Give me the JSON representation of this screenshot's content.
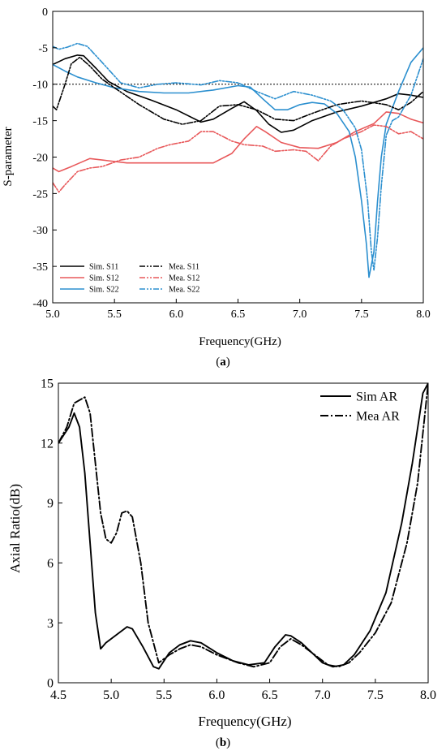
{
  "chart_data": [
    {
      "type": "line",
      "caption": "(a)",
      "caption_letter": "a",
      "xlabel": "Frequency(GHz)",
      "ylabel": "S-parameter",
      "xlim": [
        5.0,
        8.0
      ],
      "ylim": [
        -40,
        0
      ],
      "x_ticks": [
        5.0,
        5.5,
        6.0,
        6.5,
        7.0,
        7.5,
        8.0
      ],
      "y_ticks": [
        0,
        -5,
        -10,
        -15,
        -20,
        -25,
        -30,
        -35,
        -40
      ],
      "grid": false,
      "legend_position": "bottom-left",
      "reference_line": {
        "y": -10,
        "style": "dotted"
      },
      "series": [
        {
          "name": "Sim. S11",
          "color": "#000000",
          "dash": "solid",
          "points": [
            [
              5.0,
              -7.3
            ],
            [
              5.1,
              -6.5
            ],
            [
              5.2,
              -6.0
            ],
            [
              5.25,
              -6.1
            ],
            [
              5.35,
              -7.8
            ],
            [
              5.45,
              -9.6
            ],
            [
              5.6,
              -11.0
            ],
            [
              5.8,
              -12.2
            ],
            [
              6.0,
              -13.5
            ],
            [
              6.2,
              -15.2
            ],
            [
              6.3,
              -14.8
            ],
            [
              6.45,
              -13.3
            ],
            [
              6.55,
              -12.4
            ],
            [
              6.65,
              -13.6
            ],
            [
              6.75,
              -15.5
            ],
            [
              6.85,
              -16.6
            ],
            [
              6.95,
              -16.3
            ],
            [
              7.1,
              -15.0
            ],
            [
              7.3,
              -13.8
            ],
            [
              7.5,
              -13.0
            ],
            [
              7.7,
              -12.0
            ],
            [
              7.8,
              -11.3
            ],
            [
              7.9,
              -11.5
            ],
            [
              8.0,
              -11.8
            ]
          ]
        },
        {
          "name": "Sim. S12",
          "color": "#e8585a",
          "dash": "solid",
          "points": [
            [
              5.0,
              -21.5
            ],
            [
              5.05,
              -22.0
            ],
            [
              5.15,
              -21.3
            ],
            [
              5.3,
              -20.2
            ],
            [
              5.45,
              -20.5
            ],
            [
              5.6,
              -20.8
            ],
            [
              6.0,
              -20.8
            ],
            [
              6.3,
              -20.8
            ],
            [
              6.45,
              -19.5
            ],
            [
              6.55,
              -17.5
            ],
            [
              6.65,
              -15.8
            ],
            [
              6.72,
              -16.5
            ],
            [
              6.85,
              -18.0
            ],
            [
              7.0,
              -18.7
            ],
            [
              7.15,
              -18.8
            ],
            [
              7.3,
              -18.0
            ],
            [
              7.45,
              -16.5
            ],
            [
              7.6,
              -15.4
            ],
            [
              7.7,
              -13.8
            ],
            [
              7.8,
              -14.0
            ],
            [
              7.9,
              -14.8
            ],
            [
              8.0,
              -15.3
            ]
          ]
        },
        {
          "name": "Sim. S22",
          "color": "#2b8fcf",
          "dash": "solid",
          "points": [
            [
              5.0,
              -7.3
            ],
            [
              5.1,
              -8.2
            ],
            [
              5.2,
              -9.0
            ],
            [
              5.35,
              -9.8
            ],
            [
              5.5,
              -10.5
            ],
            [
              5.7,
              -11.0
            ],
            [
              5.9,
              -11.2
            ],
            [
              6.1,
              -11.2
            ],
            [
              6.3,
              -10.8
            ],
            [
              6.5,
              -10.2
            ],
            [
              6.6,
              -10.4
            ],
            [
              6.7,
              -12.0
            ],
            [
              6.8,
              -13.5
            ],
            [
              6.9,
              -13.5
            ],
            [
              7.0,
              -12.8
            ],
            [
              7.1,
              -12.5
            ],
            [
              7.2,
              -12.7
            ],
            [
              7.3,
              -14.0
            ],
            [
              7.4,
              -16.5
            ],
            [
              7.45,
              -20.0
            ],
            [
              7.5,
              -26.0
            ],
            [
              7.54,
              -32.0
            ],
            [
              7.56,
              -36.5
            ],
            [
              7.6,
              -33.0
            ],
            [
              7.63,
              -26.0
            ],
            [
              7.66,
              -20.0
            ],
            [
              7.7,
              -15.5
            ],
            [
              7.8,
              -11.0
            ],
            [
              7.9,
              -7.0
            ],
            [
              8.0,
              -5.0
            ]
          ]
        },
        {
          "name": "Mea. S11",
          "color": "#000000",
          "dash": "dashdotdot",
          "points": [
            [
              5.0,
              -13.0
            ],
            [
              5.03,
              -13.5
            ],
            [
              5.1,
              -10.0
            ],
            [
              5.15,
              -7.2
            ],
            [
              5.22,
              -6.3
            ],
            [
              5.3,
              -7.5
            ],
            [
              5.4,
              -9.3
            ],
            [
              5.5,
              -10.5
            ],
            [
              5.7,
              -12.8
            ],
            [
              5.9,
              -14.8
            ],
            [
              6.05,
              -15.5
            ],
            [
              6.2,
              -15.0
            ],
            [
              6.35,
              -13.0
            ],
            [
              6.5,
              -12.8
            ],
            [
              6.65,
              -13.5
            ],
            [
              6.8,
              -14.8
            ],
            [
              6.95,
              -15.0
            ],
            [
              7.1,
              -14.0
            ],
            [
              7.3,
              -12.8
            ],
            [
              7.5,
              -12.3
            ],
            [
              7.7,
              -12.8
            ],
            [
              7.8,
              -13.5
            ],
            [
              7.9,
              -12.5
            ],
            [
              8.0,
              -11.0
            ]
          ]
        },
        {
          "name": "Mea. S12",
          "color": "#e8585a",
          "dash": "dashdotdot",
          "points": [
            [
              5.0,
              -23.5
            ],
            [
              5.05,
              -24.8
            ],
            [
              5.1,
              -23.8
            ],
            [
              5.2,
              -22.0
            ],
            [
              5.3,
              -21.5
            ],
            [
              5.4,
              -21.3
            ],
            [
              5.55,
              -20.4
            ],
            [
              5.7,
              -20.0
            ],
            [
              5.85,
              -18.8
            ],
            [
              5.95,
              -18.3
            ],
            [
              6.1,
              -17.8
            ],
            [
              6.2,
              -16.5
            ],
            [
              6.3,
              -16.5
            ],
            [
              6.45,
              -17.8
            ],
            [
              6.55,
              -18.3
            ],
            [
              6.7,
              -18.5
            ],
            [
              6.8,
              -19.2
            ],
            [
              6.95,
              -19.0
            ],
            [
              7.05,
              -19.2
            ],
            [
              7.15,
              -20.5
            ],
            [
              7.25,
              -18.5
            ],
            [
              7.35,
              -17.5
            ],
            [
              7.5,
              -16.5
            ],
            [
              7.6,
              -15.6
            ],
            [
              7.7,
              -15.8
            ],
            [
              7.8,
              -16.8
            ],
            [
              7.9,
              -16.5
            ],
            [
              8.0,
              -17.5
            ]
          ]
        },
        {
          "name": "Mea. S22",
          "color": "#2b8fcf",
          "dash": "dashdotdot",
          "points": [
            [
              5.0,
              -4.8
            ],
            [
              5.05,
              -5.2
            ],
            [
              5.12,
              -4.9
            ],
            [
              5.2,
              -4.4
            ],
            [
              5.28,
              -4.8
            ],
            [
              5.4,
              -7.0
            ],
            [
              5.55,
              -9.8
            ],
            [
              5.7,
              -10.5
            ],
            [
              5.85,
              -10.0
            ],
            [
              6.0,
              -9.8
            ],
            [
              6.2,
              -10.1
            ],
            [
              6.35,
              -9.5
            ],
            [
              6.5,
              -9.8
            ],
            [
              6.65,
              -11.0
            ],
            [
              6.8,
              -12.0
            ],
            [
              6.95,
              -11.0
            ],
            [
              7.1,
              -11.5
            ],
            [
              7.25,
              -12.3
            ],
            [
              7.35,
              -13.5
            ],
            [
              7.45,
              -16.0
            ],
            [
              7.5,
              -19.0
            ],
            [
              7.55,
              -26.0
            ],
            [
              7.58,
              -33.0
            ],
            [
              7.6,
              -35.5
            ],
            [
              7.63,
              -31.0
            ],
            [
              7.66,
              -24.0
            ],
            [
              7.7,
              -17.0
            ],
            [
              7.75,
              -15.0
            ],
            [
              7.8,
              -14.5
            ],
            [
              7.9,
              -11.5
            ],
            [
              8.0,
              -6.5
            ]
          ]
        }
      ]
    },
    {
      "type": "line",
      "caption": "(b)",
      "caption_letter": "b",
      "xlabel": "Frequency(GHz)",
      "ylabel": "Axial Ratio(dB)",
      "xlim": [
        4.5,
        8.0
      ],
      "ylim": [
        0,
        15
      ],
      "x_ticks": [
        4.5,
        5.0,
        5.5,
        6.0,
        6.5,
        7.0,
        7.5,
        8.0
      ],
      "y_ticks": [
        0,
        3,
        6,
        9,
        12,
        15
      ],
      "grid": false,
      "legend_position": "top-right",
      "series": [
        {
          "name": "Sim AR",
          "color": "#000000",
          "dash": "solid",
          "points": [
            [
              4.5,
              12.0
            ],
            [
              4.6,
              12.8
            ],
            [
              4.65,
              13.5
            ],
            [
              4.7,
              12.8
            ],
            [
              4.75,
              10.5
            ],
            [
              4.8,
              7.0
            ],
            [
              4.85,
              3.5
            ],
            [
              4.9,
              1.7
            ],
            [
              4.95,
              2.0
            ],
            [
              5.0,
              2.2
            ],
            [
              5.1,
              2.6
            ],
            [
              5.15,
              2.8
            ],
            [
              5.2,
              2.7
            ],
            [
              5.3,
              1.8
            ],
            [
              5.4,
              0.8
            ],
            [
              5.45,
              0.7
            ],
            [
              5.55,
              1.5
            ],
            [
              5.65,
              1.9
            ],
            [
              5.75,
              2.1
            ],
            [
              5.85,
              2.0
            ],
            [
              6.0,
              1.5
            ],
            [
              6.15,
              1.1
            ],
            [
              6.3,
              0.9
            ],
            [
              6.45,
              1.0
            ],
            [
              6.55,
              1.8
            ],
            [
              6.65,
              2.4
            ],
            [
              6.7,
              2.35
            ],
            [
              6.8,
              2.0
            ],
            [
              6.9,
              1.5
            ],
            [
              7.0,
              1.0
            ],
            [
              7.1,
              0.8
            ],
            [
              7.2,
              0.9
            ],
            [
              7.3,
              1.4
            ],
            [
              7.45,
              2.6
            ],
            [
              7.6,
              4.5
            ],
            [
              7.75,
              8.0
            ],
            [
              7.85,
              11.0
            ],
            [
              7.95,
              14.5
            ],
            [
              8.0,
              15.0
            ]
          ]
        },
        {
          "name": "Mea AR",
          "color": "#000000",
          "dash": "dashdot",
          "points": [
            [
              4.5,
              12.0
            ],
            [
              4.58,
              12.8
            ],
            [
              4.65,
              14.0
            ],
            [
              4.75,
              14.3
            ],
            [
              4.8,
              13.5
            ],
            [
              4.85,
              11.0
            ],
            [
              4.9,
              8.5
            ],
            [
              4.95,
              7.2
            ],
            [
              5.0,
              7.0
            ],
            [
              5.05,
              7.5
            ],
            [
              5.1,
              8.5
            ],
            [
              5.15,
              8.6
            ],
            [
              5.2,
              8.3
            ],
            [
              5.28,
              6.0
            ],
            [
              5.35,
              3.0
            ],
            [
              5.45,
              1.0
            ],
            [
              5.55,
              1.4
            ],
            [
              5.65,
              1.7
            ],
            [
              5.75,
              1.9
            ],
            [
              5.85,
              1.8
            ],
            [
              6.0,
              1.4
            ],
            [
              6.2,
              1.0
            ],
            [
              6.35,
              0.8
            ],
            [
              6.5,
              1.0
            ],
            [
              6.6,
              1.8
            ],
            [
              6.7,
              2.2
            ],
            [
              6.8,
              1.9
            ],
            [
              6.95,
              1.3
            ],
            [
              7.05,
              0.9
            ],
            [
              7.15,
              0.8
            ],
            [
              7.25,
              1.0
            ],
            [
              7.35,
              1.5
            ],
            [
              7.5,
              2.5
            ],
            [
              7.65,
              4.0
            ],
            [
              7.8,
              7.0
            ],
            [
              7.9,
              10.0
            ],
            [
              7.97,
              13.5
            ],
            [
              8.0,
              15.0
            ]
          ]
        }
      ]
    }
  ]
}
